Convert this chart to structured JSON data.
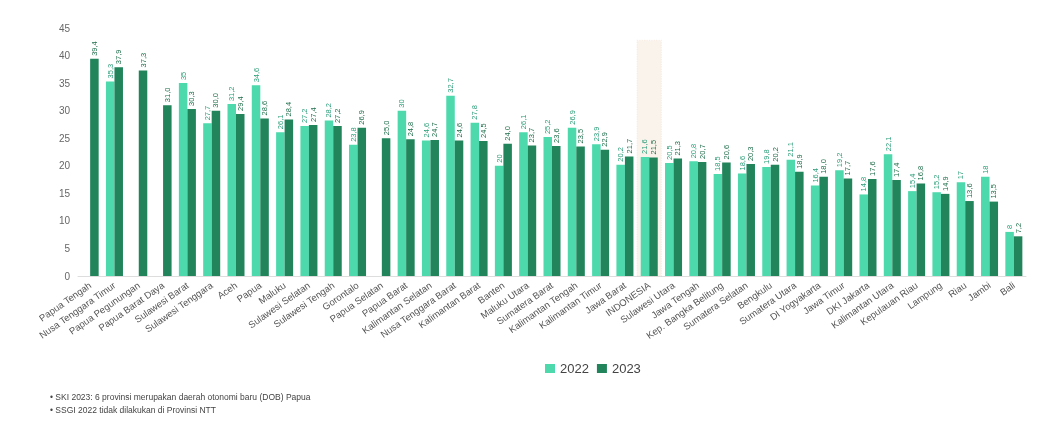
{
  "chart_data": {
    "type": "bar",
    "categories": [
      "Papua Tengah",
      "Nusa Tenggara Timur",
      "Papua Pegunungan",
      "Papua Barat Daya",
      "Sulawesi Barat",
      "Sulawesi Tenggara",
      "Aceh",
      "Papua",
      "Maluku",
      "Sulawesi Selatan",
      "Sulawesi Tengah",
      "Gorontalo",
      "Papua Selatan",
      "Papua Barat",
      "Kalimantan Selatan",
      "Nusa Tenggara Barat",
      "Kalimantan Barat",
      "Banten",
      "Maluku Utara",
      "Sumatera Barat",
      "Kalimantan Tengah",
      "Kalimantan Timur",
      "Jawa Barat",
      "INDONESIA",
      "Sulawesi Utara",
      "Jawa Tengah",
      "Kep. Bangka Belitung",
      "Sumatera Selatan",
      "Bengkulu",
      "Sumatera Utara",
      "DI Yogyakarta",
      "Jawa Timur",
      "DKI Jakarta",
      "Kalimantan Utara",
      "Kepulauan Riau",
      "Lampung",
      "Riau",
      "Jambi",
      "Bali"
    ],
    "series": [
      {
        "name": "2022",
        "color": "#4dd9ac",
        "values": [
          null,
          35.3,
          null,
          null,
          35,
          27.7,
          31.2,
          34.6,
          26.1,
          27.2,
          28.2,
          23.8,
          null,
          30,
          24.6,
          32.7,
          27.8,
          20,
          26.1,
          25.2,
          26.9,
          23.9,
          20.2,
          21.6,
          20.5,
          20.8,
          18.5,
          18.6,
          19.8,
          21.1,
          16.4,
          19.2,
          14.8,
          22.1,
          15.4,
          15.2,
          17,
          18,
          8
        ],
        "value_labels": [
          null,
          "35,3",
          null,
          null,
          "35",
          "27,7",
          "31,2",
          "34,6",
          "26,1",
          "27,2",
          "28,2",
          "23,8",
          null,
          "30",
          "24,6",
          "32,7",
          "27,8",
          "20",
          "26,1",
          "25,2",
          "26,9",
          "23,9",
          "20,2",
          "21,6",
          "20,5",
          "20,8",
          "18,5",
          "18,6",
          "19,8",
          "21,1",
          "16,4",
          "19,2",
          "14,8",
          "22,1",
          "15,4",
          "15,2",
          "17",
          "18",
          "8"
        ]
      },
      {
        "name": "2023",
        "color": "#21845a",
        "values": [
          39.4,
          37.9,
          37.3,
          31.0,
          30.3,
          30.0,
          29.4,
          28.6,
          28.4,
          27.4,
          27.2,
          26.9,
          25.0,
          24.8,
          24.7,
          24.6,
          24.5,
          24.0,
          23.7,
          23.6,
          23.5,
          22.9,
          21.7,
          21.5,
          21.3,
          20.7,
          20.6,
          20.3,
          20.2,
          18.9,
          18.0,
          17.7,
          17.6,
          17.4,
          16.8,
          14.9,
          13.6,
          13.5,
          7.2
        ],
        "value_labels": [
          "39,4",
          "37,9",
          "37,3",
          "31,0",
          "30,3",
          "30,0",
          "29,4",
          "28,6",
          "28,4",
          "27,4",
          "27,2",
          "26,9",
          "25,0",
          "24,8",
          "24,7",
          "24,6",
          "24,5",
          "24,0",
          "23,7",
          "23,6",
          "23,5",
          "22,9",
          "21,7",
          "21,5",
          "21,3",
          "20,7",
          "20,6",
          "20,3",
          "20,2",
          "18,9",
          "18,0",
          "17,7",
          "17,6",
          "17,4",
          "16,8",
          "14,9",
          "13,6",
          "13,5",
          "7,2"
        ]
      }
    ],
    "bands": [
      {
        "axis": "x",
        "from": "INDONESIA",
        "to": "INDONESIA",
        "color": "#d9a066"
      }
    ],
    "ylim": [
      0,
      45
    ],
    "yticks": [
      0,
      5,
      10,
      15,
      20,
      25,
      30,
      35,
      40,
      45
    ],
    "grid": false,
    "legend": "bottom",
    "annotations": [
      "• SKI 2023: 6 provinsi merupakan daerah otonomi baru (DOB) Papua",
      "• SSGI 2022 tidak dilakukan di Provinsi NTT"
    ]
  }
}
